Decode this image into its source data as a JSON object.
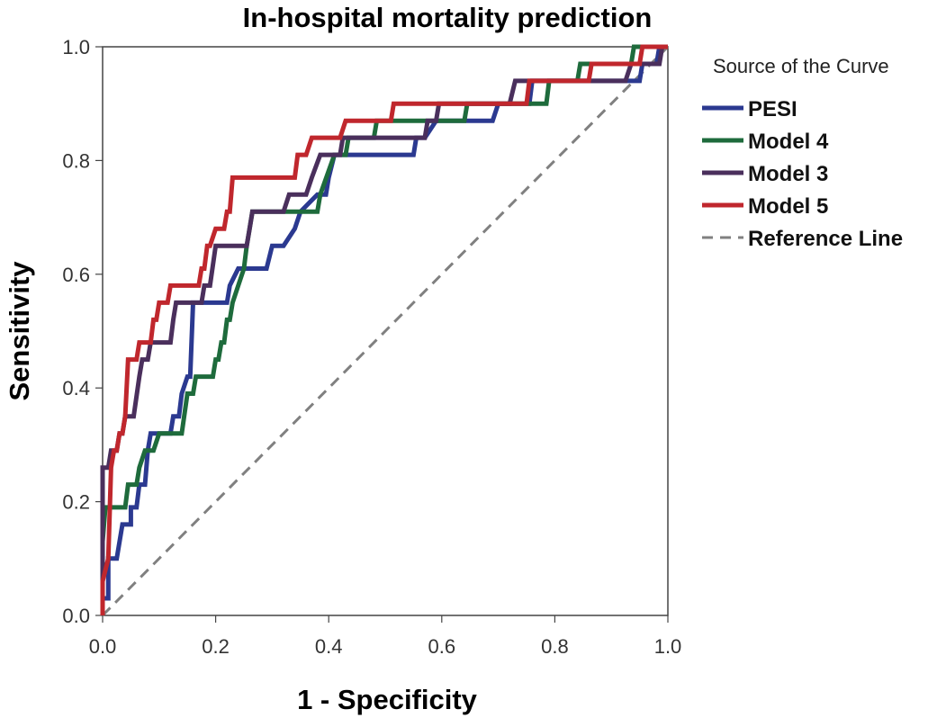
{
  "chart_data": {
    "type": "line",
    "title": "In-hospital mortality prediction",
    "xlabel": "1 - Specificity",
    "ylabel": "Sensitivity",
    "xlim": [
      0,
      1
    ],
    "ylim": [
      0,
      1
    ],
    "xticks": [
      "0.0",
      "0.2",
      "0.4",
      "0.6",
      "0.8",
      "1.0"
    ],
    "yticks": [
      "0.0",
      "0.2",
      "0.4",
      "0.6",
      "0.8",
      "1.0"
    ],
    "legend_title": "Source of the Curve",
    "legend_position": "right",
    "series": [
      {
        "name": "PESI",
        "color": "#2b3990",
        "points": [
          [
            0,
            0
          ],
          [
            0,
            0.03
          ],
          [
            0.01,
            0.03
          ],
          [
            0.01,
            0.1
          ],
          [
            0.025,
            0.1
          ],
          [
            0.035,
            0.16
          ],
          [
            0.05,
            0.16
          ],
          [
            0.05,
            0.19
          ],
          [
            0.06,
            0.19
          ],
          [
            0.065,
            0.23
          ],
          [
            0.075,
            0.23
          ],
          [
            0.08,
            0.29
          ],
          [
            0.085,
            0.32
          ],
          [
            0.12,
            0.32
          ],
          [
            0.125,
            0.35
          ],
          [
            0.135,
            0.35
          ],
          [
            0.14,
            0.39
          ],
          [
            0.15,
            0.42
          ],
          [
            0.155,
            0.42
          ],
          [
            0.16,
            0.55
          ],
          [
            0.22,
            0.55
          ],
          [
            0.225,
            0.58
          ],
          [
            0.24,
            0.61
          ],
          [
            0.29,
            0.61
          ],
          [
            0.3,
            0.65
          ],
          [
            0.32,
            0.65
          ],
          [
            0.34,
            0.68
          ],
          [
            0.35,
            0.71
          ],
          [
            0.38,
            0.74
          ],
          [
            0.395,
            0.74
          ],
          [
            0.4,
            0.77
          ],
          [
            0.41,
            0.81
          ],
          [
            0.55,
            0.81
          ],
          [
            0.555,
            0.84
          ],
          [
            0.57,
            0.84
          ],
          [
            0.59,
            0.87
          ],
          [
            0.69,
            0.87
          ],
          [
            0.7,
            0.9
          ],
          [
            0.755,
            0.9
          ],
          [
            0.76,
            0.94
          ],
          [
            0.95,
            0.94
          ],
          [
            0.955,
            0.97
          ],
          [
            0.98,
            0.97
          ],
          [
            0.985,
            1.0
          ],
          [
            1.0,
            1.0
          ]
        ]
      },
      {
        "name": "Model 4",
        "color": "#1e6b3c",
        "points": [
          [
            0,
            0
          ],
          [
            0,
            0.13
          ],
          [
            0.005,
            0.19
          ],
          [
            0.04,
            0.19
          ],
          [
            0.045,
            0.23
          ],
          [
            0.06,
            0.23
          ],
          [
            0.065,
            0.26
          ],
          [
            0.075,
            0.29
          ],
          [
            0.09,
            0.29
          ],
          [
            0.1,
            0.32
          ],
          [
            0.14,
            0.32
          ],
          [
            0.15,
            0.39
          ],
          [
            0.16,
            0.39
          ],
          [
            0.165,
            0.42
          ],
          [
            0.195,
            0.42
          ],
          [
            0.2,
            0.45
          ],
          [
            0.205,
            0.45
          ],
          [
            0.21,
            0.48
          ],
          [
            0.215,
            0.48
          ],
          [
            0.22,
            0.52
          ],
          [
            0.225,
            0.52
          ],
          [
            0.23,
            0.55
          ],
          [
            0.24,
            0.58
          ],
          [
            0.25,
            0.61
          ],
          [
            0.255,
            0.65
          ],
          [
            0.26,
            0.68
          ],
          [
            0.265,
            0.71
          ],
          [
            0.38,
            0.71
          ],
          [
            0.385,
            0.74
          ],
          [
            0.41,
            0.81
          ],
          [
            0.43,
            0.81
          ],
          [
            0.435,
            0.84
          ],
          [
            0.48,
            0.84
          ],
          [
            0.485,
            0.87
          ],
          [
            0.64,
            0.87
          ],
          [
            0.645,
            0.9
          ],
          [
            0.785,
            0.9
          ],
          [
            0.79,
            0.94
          ],
          [
            0.84,
            0.94
          ],
          [
            0.845,
            0.97
          ],
          [
            0.935,
            0.97
          ],
          [
            0.94,
            1.0
          ],
          [
            1.0,
            1.0
          ]
        ]
      },
      {
        "name": "Model 3",
        "color": "#4a2f5c",
        "points": [
          [
            0,
            0
          ],
          [
            0,
            0.26
          ],
          [
            0.01,
            0.26
          ],
          [
            0.015,
            0.29
          ],
          [
            0.025,
            0.29
          ],
          [
            0.03,
            0.32
          ],
          [
            0.035,
            0.32
          ],
          [
            0.04,
            0.35
          ],
          [
            0.055,
            0.35
          ],
          [
            0.065,
            0.42
          ],
          [
            0.07,
            0.45
          ],
          [
            0.08,
            0.45
          ],
          [
            0.085,
            0.48
          ],
          [
            0.12,
            0.48
          ],
          [
            0.125,
            0.52
          ],
          [
            0.13,
            0.55
          ],
          [
            0.175,
            0.55
          ],
          [
            0.18,
            0.58
          ],
          [
            0.19,
            0.58
          ],
          [
            0.2,
            0.65
          ],
          [
            0.255,
            0.65
          ],
          [
            0.26,
            0.68
          ],
          [
            0.265,
            0.71
          ],
          [
            0.32,
            0.71
          ],
          [
            0.33,
            0.74
          ],
          [
            0.36,
            0.74
          ],
          [
            0.37,
            0.77
          ],
          [
            0.385,
            0.81
          ],
          [
            0.42,
            0.81
          ],
          [
            0.425,
            0.84
          ],
          [
            0.57,
            0.84
          ],
          [
            0.575,
            0.87
          ],
          [
            0.59,
            0.87
          ],
          [
            0.595,
            0.9
          ],
          [
            0.72,
            0.9
          ],
          [
            0.73,
            0.94
          ],
          [
            0.925,
            0.94
          ],
          [
            0.935,
            0.97
          ],
          [
            0.985,
            0.97
          ],
          [
            0.99,
            1.0
          ],
          [
            1.0,
            1.0
          ]
        ]
      },
      {
        "name": "Model 5",
        "color": "#c0272d",
        "points": [
          [
            0,
            0
          ],
          [
            0,
            0.06
          ],
          [
            0.01,
            0.1
          ],
          [
            0.015,
            0.26
          ],
          [
            0.02,
            0.29
          ],
          [
            0.025,
            0.29
          ],
          [
            0.03,
            0.32
          ],
          [
            0.035,
            0.32
          ],
          [
            0.04,
            0.35
          ],
          [
            0.045,
            0.45
          ],
          [
            0.06,
            0.45
          ],
          [
            0.065,
            0.48
          ],
          [
            0.085,
            0.48
          ],
          [
            0.09,
            0.52
          ],
          [
            0.095,
            0.52
          ],
          [
            0.1,
            0.55
          ],
          [
            0.115,
            0.55
          ],
          [
            0.12,
            0.58
          ],
          [
            0.17,
            0.58
          ],
          [
            0.175,
            0.61
          ],
          [
            0.18,
            0.61
          ],
          [
            0.185,
            0.65
          ],
          [
            0.19,
            0.65
          ],
          [
            0.2,
            0.68
          ],
          [
            0.215,
            0.68
          ],
          [
            0.22,
            0.71
          ],
          [
            0.225,
            0.71
          ],
          [
            0.23,
            0.77
          ],
          [
            0.34,
            0.77
          ],
          [
            0.345,
            0.81
          ],
          [
            0.36,
            0.81
          ],
          [
            0.37,
            0.84
          ],
          [
            0.42,
            0.84
          ],
          [
            0.43,
            0.87
          ],
          [
            0.51,
            0.87
          ],
          [
            0.515,
            0.9
          ],
          [
            0.75,
            0.9
          ],
          [
            0.755,
            0.94
          ],
          [
            0.86,
            0.94
          ],
          [
            0.865,
            0.97
          ],
          [
            0.95,
            0.97
          ],
          [
            0.955,
            1.0
          ],
          [
            1.0,
            1.0
          ]
        ]
      },
      {
        "name": "Reference Line",
        "color": "#808080",
        "dashed": true,
        "points": [
          [
            0,
            0
          ],
          [
            1,
            1
          ]
        ]
      }
    ]
  }
}
